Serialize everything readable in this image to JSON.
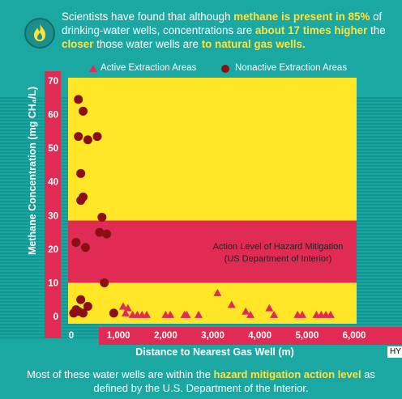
{
  "header": {
    "icon": "flame-icon",
    "intro_1": "Scientists have found that although ",
    "intro_hl1": "methane is present in 85%",
    "intro_2": " of drinking-water wells, concentrations are ",
    "intro_hl2": "about 17 times higher",
    "intro_3": " the ",
    "intro_hl3": "closer",
    "intro_4": " those water wells are ",
    "intro_hl4": "to natural gas wells."
  },
  "footer": {
    "text_1": "Most of these water wells are within the ",
    "text_hl": "hazard mitigation action level",
    "text_2": " as defined by the U.S. Department of the Interior."
  },
  "watermark": "HY",
  "colors": {
    "background": "#1ba8a3",
    "plot": "#ffe626",
    "band": "#e02c55",
    "active": "#e02c55",
    "nonactive": "#8b0f14",
    "highlight": "#ffe23a"
  },
  "chart_data": {
    "type": "scatter",
    "xlabel": "Distance to Nearest Gas Well (m)",
    "ylabel": "Methane Concentration (mg CH₄/L)",
    "xlim": [
      0,
      6000
    ],
    "ylim": [
      0,
      70
    ],
    "x_ticks": [
      "0",
      "1,000",
      "2,000",
      "3,000",
      "4,000",
      "5,000",
      "6,000"
    ],
    "x_tick_values": [
      0,
      1000,
      2000,
      3000,
      4000,
      5000,
      6000
    ],
    "y_ticks": [
      "0",
      "10",
      "20",
      "30",
      "40",
      "50",
      "60",
      "70"
    ],
    "y_tick_values": [
      0,
      10,
      20,
      30,
      40,
      50,
      60,
      70
    ],
    "legend_position": "top",
    "band": {
      "y0": 10,
      "y1": 28.5,
      "label_1": "Action Level of Hazard Mitigation",
      "label_2": "(US Department of Interior)"
    },
    "series": [
      {
        "name": "Active Extraction Areas",
        "marker": "triangle",
        "points": [
          [
            1100,
            3
          ],
          [
            1200,
            2.5
          ],
          [
            1150,
            1
          ],
          [
            1300,
            0.5
          ],
          [
            1400,
            0.5
          ],
          [
            1500,
            0.5
          ],
          [
            1600,
            0.5
          ],
          [
            2000,
            0.5
          ],
          [
            2100,
            0.5
          ],
          [
            2400,
            0.5
          ],
          [
            2450,
            0.5
          ],
          [
            2700,
            0.5
          ],
          [
            3100,
            7
          ],
          [
            3400,
            3.5
          ],
          [
            3700,
            1.5
          ],
          [
            3800,
            0.5
          ],
          [
            4200,
            2.5
          ],
          [
            4300,
            0.5
          ],
          [
            4800,
            0.5
          ],
          [
            4900,
            0.5
          ],
          [
            5200,
            0.5
          ],
          [
            5300,
            0.5
          ],
          [
            5400,
            0.5
          ],
          [
            5500,
            0.5
          ]
        ]
      },
      {
        "name": "Nonactive Extraction Areas",
        "marker": "circle",
        "points": [
          [
            150,
            64.5
          ],
          [
            250,
            61
          ],
          [
            150,
            53.5
          ],
          [
            350,
            52.5
          ],
          [
            550,
            53.5
          ],
          [
            200,
            42.5
          ],
          [
            250,
            35.5
          ],
          [
            200,
            34.5
          ],
          [
            650,
            29.5
          ],
          [
            600,
            25
          ],
          [
            750,
            24.5
          ],
          [
            100,
            22
          ],
          [
            300,
            20.5
          ],
          [
            700,
            10
          ],
          [
            200,
            5
          ],
          [
            350,
            3
          ],
          [
            100,
            2
          ],
          [
            150,
            1.5
          ],
          [
            50,
            1
          ],
          [
            250,
            1
          ],
          [
            900,
            1
          ]
        ]
      }
    ]
  }
}
